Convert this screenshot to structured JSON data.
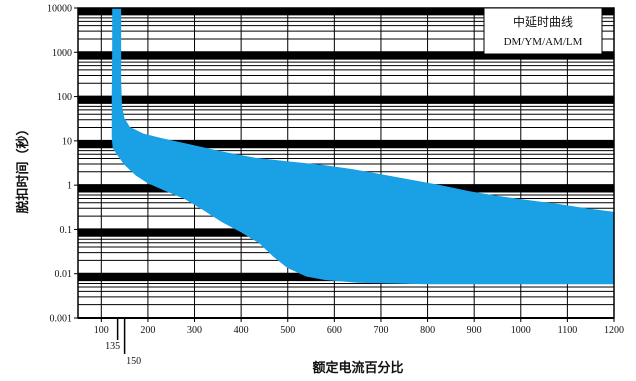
{
  "chart_data": {
    "type": "area",
    "title": "",
    "xlabel": "额定电流百分比",
    "ylabel": "脱扣时间（秒）",
    "x_scale": "linear",
    "y_scale": "log",
    "xlim": [
      50,
      1200
    ],
    "ylim": [
      0.001,
      10000
    ],
    "x_ticks": [
      "100",
      "200",
      "300",
      "400",
      "500",
      "600",
      "700",
      "800",
      "900",
      "1000",
      "1100",
      "1200"
    ],
    "x_extra_ticks": [
      "135",
      "150"
    ],
    "y_ticks": [
      "10000",
      "1000",
      "100",
      "10",
      "1",
      "0.1",
      "0.01",
      "0.001"
    ],
    "legend": {
      "position": "top-right",
      "title": "中延时曲线",
      "subtitle": "DM/YM/AM/LM"
    },
    "series": [
      {
        "role": "upper bound",
        "color": "#1aa0e4",
        "points": [
          [
            141,
            10000
          ],
          [
            141,
            200
          ],
          [
            143,
            60
          ],
          [
            148,
            32
          ],
          [
            160,
            20
          ],
          [
            190,
            14
          ],
          [
            230,
            11
          ],
          [
            290,
            8
          ],
          [
            360,
            5.5
          ],
          [
            430,
            4
          ],
          [
            500,
            3.3
          ],
          [
            570,
            2.8
          ],
          [
            640,
            2.2
          ],
          [
            700,
            1.7
          ],
          [
            760,
            1.3
          ],
          [
            830,
            0.95
          ],
          [
            890,
            0.7
          ],
          [
            950,
            0.55
          ],
          [
            1010,
            0.45
          ],
          [
            1080,
            0.36
          ],
          [
            1140,
            0.29
          ],
          [
            1200,
            0.24
          ]
        ]
      },
      {
        "role": "lower bound",
        "color": "#1aa0e4",
        "points": [
          [
            125,
            10000
          ],
          [
            125,
            1000
          ],
          [
            124,
            100
          ],
          [
            124,
            12
          ],
          [
            126,
            7
          ],
          [
            135,
            5
          ],
          [
            150,
            3
          ],
          [
            175,
            1.7
          ],
          [
            200,
            1.15
          ],
          [
            240,
            0.75
          ],
          [
            280,
            0.5
          ],
          [
            320,
            0.28
          ],
          [
            360,
            0.15
          ],
          [
            400,
            0.09
          ],
          [
            440,
            0.05
          ],
          [
            470,
            0.025
          ],
          [
            500,
            0.014
          ],
          [
            540,
            0.009
          ],
          [
            580,
            0.0075
          ],
          [
            650,
            0.0065
          ],
          [
            800,
            0.006
          ],
          [
            1000,
            0.006
          ],
          [
            1200,
            0.006
          ]
        ]
      }
    ],
    "colors": {
      "band": "#1aa0e4",
      "grid": "#000000",
      "background": "#ffffff"
    }
  }
}
